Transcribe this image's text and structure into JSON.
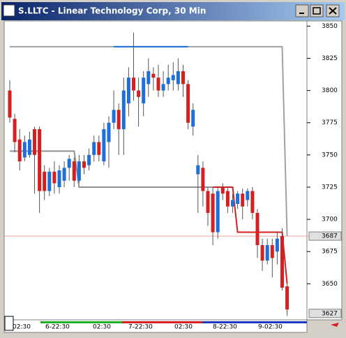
{
  "window": {
    "title": "S.LLTC - Linear Technology Corp, 30 Min"
  },
  "chart_data": {
    "type": "candlestick",
    "up_color": "#1e6fd9",
    "down_color": "#d42020",
    "ylim": [
      3854,
      3622
    ],
    "yticks": [
      3850,
      3825,
      3800,
      3775,
      3750,
      3725,
      3700,
      3675,
      3650
    ],
    "price_labels": [
      3687,
      3627
    ],
    "x_labels": [
      "02:30",
      "6-22:30",
      "02:30",
      "7-22:30",
      "02:30",
      "8-22:30",
      "9-02:30"
    ],
    "candles": [
      {
        "open": 3800,
        "high": 3808,
        "low": 3775,
        "close": 3779
      },
      {
        "open": 3778,
        "high": 3782,
        "low": 3752,
        "close": 3760
      },
      {
        "open": 3762,
        "high": 3770,
        "low": 3738,
        "close": 3745
      },
      {
        "open": 3748,
        "high": 3765,
        "low": 3745,
        "close": 3760
      },
      {
        "open": 3750,
        "high": 3768,
        "low": 3748,
        "close": 3762
      },
      {
        "open": 3770,
        "high": 3772,
        "low": 3720,
        "close": 3750
      },
      {
        "open": 3770,
        "high": 3772,
        "low": 3705,
        "close": 3722
      },
      {
        "open": 3737,
        "high": 3742,
        "low": 3715,
        "close": 3722
      },
      {
        "open": 3722,
        "high": 3740,
        "low": 3718,
        "close": 3737
      },
      {
        "open": 3737,
        "high": 3745,
        "low": 3720,
        "close": 3728
      },
      {
        "open": 3725,
        "high": 3742,
        "low": 3720,
        "close": 3738
      },
      {
        "open": 3730,
        "high": 3745,
        "low": 3725,
        "close": 3740
      },
      {
        "open": 3740,
        "high": 3750,
        "low": 3730,
        "close": 3747
      },
      {
        "open": 3745,
        "high": 3748,
        "low": 3725,
        "close": 3730
      },
      {
        "open": 3730,
        "high": 3750,
        "low": 3728,
        "close": 3745
      },
      {
        "open": 3745,
        "high": 3750,
        "low": 3735,
        "close": 3740
      },
      {
        "open": 3742,
        "high": 3755,
        "low": 3738,
        "close": 3750
      },
      {
        "open": 3750,
        "high": 3765,
        "low": 3745,
        "close": 3760
      },
      {
        "open": 3760,
        "high": 3765,
        "low": 3745,
        "close": 3750
      },
      {
        "open": 3745,
        "high": 3775,
        "low": 3742,
        "close": 3770
      },
      {
        "open": 3760,
        "high": 3780,
        "low": 3740,
        "close": 3775
      },
      {
        "open": 3775,
        "high": 3800,
        "low": 3770,
        "close": 3785
      },
      {
        "open": 3785,
        "high": 3790,
        "low": 3750,
        "close": 3770
      },
      {
        "open": 3770,
        "high": 3810,
        "low": 3750,
        "close": 3800
      },
      {
        "open": 3790,
        "high": 3818,
        "low": 3780,
        "close": 3810
      },
      {
        "open": 3810,
        "high": 3845,
        "low": 3792,
        "close": 3800
      },
      {
        "open": 3800,
        "high": 3810,
        "low": 3772,
        "close": 3795
      },
      {
        "open": 3790,
        "high": 3815,
        "low": 3780,
        "close": 3810
      },
      {
        "open": 3805,
        "high": 3825,
        "low": 3795,
        "close": 3815
      },
      {
        "open": 3813,
        "high": 3818,
        "low": 3800,
        "close": 3810
      },
      {
        "open": 3810,
        "high": 3820,
        "low": 3795,
        "close": 3800
      },
      {
        "open": 3800,
        "high": 3815,
        "low": 3795,
        "close": 3805
      },
      {
        "open": 3805,
        "high": 3820,
        "low": 3800,
        "close": 3810
      },
      {
        "open": 3808,
        "high": 3822,
        "low": 3800,
        "close": 3812
      },
      {
        "open": 3805,
        "high": 3825,
        "low": 3800,
        "close": 3815
      },
      {
        "open": 3815,
        "high": 3820,
        "low": 3795,
        "close": 3805
      },
      {
        "open": 3805,
        "high": 3808,
        "low": 3770,
        "close": 3775
      },
      {
        "open": 3772,
        "high": 3790,
        "low": 3765,
        "close": 3785
      },
      {
        "open": 3735,
        "high": 3750,
        "low": 3705,
        "close": 3742
      },
      {
        "open": 3740,
        "high": 3745,
        "low": 3710,
        "close": 3722
      },
      {
        "open": 3722,
        "high": 3725,
        "low": 3695,
        "close": 3705
      },
      {
        "open": 3720,
        "high": 3725,
        "low": 3680,
        "close": 3690
      },
      {
        "open": 3690,
        "high": 3725,
        "low": 3685,
        "close": 3722
      },
      {
        "open": 3725,
        "high": 3728,
        "low": 3715,
        "close": 3720
      },
      {
        "open": 3722,
        "high": 3725,
        "low": 3705,
        "close": 3710
      },
      {
        "open": 3710,
        "high": 3720,
        "low": 3705,
        "close": 3715
      },
      {
        "open": 3712,
        "high": 3722,
        "low": 3708,
        "close": 3720
      },
      {
        "open": 3720,
        "high": 3724,
        "low": 3700,
        "close": 3710
      },
      {
        "open": 3715,
        "high": 3724,
        "low": 3710,
        "close": 3722
      },
      {
        "open": 3722,
        "high": 3725,
        "low": 3700,
        "close": 3705
      },
      {
        "open": 3705,
        "high": 3708,
        "low": 3670,
        "close": 3680
      },
      {
        "open": 3680,
        "high": 3685,
        "low": 3660,
        "close": 3668
      },
      {
        "open": 3668,
        "high": 3685,
        "low": 3665,
        "close": 3680
      },
      {
        "open": 3680,
        "high": 3685,
        "low": 3655,
        "close": 3670
      },
      {
        "open": 3675,
        "high": 3690,
        "low": 3665,
        "close": 3685
      },
      {
        "open": 3687,
        "high": 3693,
        "low": 3645,
        "close": 3647
      },
      {
        "open": 3648,
        "high": 3650,
        "low": 3625,
        "close": 3630
      }
    ],
    "lines": [
      {
        "color": "#a0a0a0",
        "x": [
          0,
          55,
          56
        ],
        "values": [
          3834,
          3834,
          3687
        ]
      },
      {
        "color": "#1e6fd9",
        "x": [
          21,
          36
        ],
        "values": [
          3834,
          3834
        ]
      },
      {
        "color": "#909090",
        "x": [
          0,
          13,
          14,
          41
        ],
        "values": [
          3753,
          3753,
          3725,
          3725
        ]
      },
      {
        "color": "#d42020",
        "x": [
          41,
          45,
          46,
          55,
          56
        ],
        "values": [
          3725,
          3725,
          3690,
          3690,
          3650
        ]
      }
    ]
  }
}
